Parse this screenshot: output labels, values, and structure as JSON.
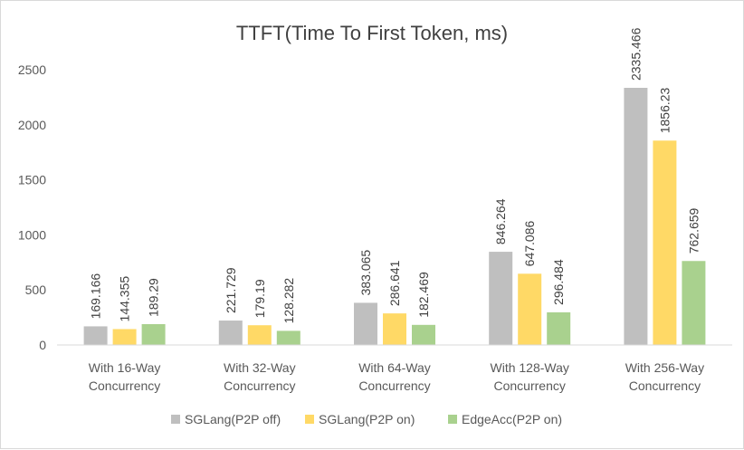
{
  "chart_data": {
    "type": "bar",
    "title": "TTFT(Time To First Token, ms)",
    "xlabel": "",
    "ylabel": "",
    "ylim": [
      0,
      2500
    ],
    "yticks": [
      0,
      500,
      1000,
      1500,
      2000,
      2500
    ],
    "categories": [
      [
        "With 16-Way",
        "Concurrency"
      ],
      [
        "With 32-Way",
        "Concurrency"
      ],
      [
        "With 64-Way",
        "Concurrency"
      ],
      [
        "With 128-Way",
        "Concurrency"
      ],
      [
        "With 256-Way",
        "Concurrency"
      ]
    ],
    "series": [
      {
        "name": "SGLang(P2P off)",
        "color": "#bfbfbf",
        "values": [
          169.166,
          221.729,
          383.065,
          846.264,
          2335.466
        ],
        "labels": [
          "169.166",
          "221.729",
          "383.065",
          "846.264",
          "2335.466"
        ]
      },
      {
        "name": "SGLang(P2P on)",
        "color": "#ffd966",
        "values": [
          144.355,
          179.19,
          286.641,
          647.086,
          1856.23
        ],
        "labels": [
          "144.355",
          "179.19",
          "286.641",
          "647.086",
          "1856.23"
        ]
      },
      {
        "name": "EdgeAcc(P2P on)",
        "color": "#a9d18e",
        "values": [
          189.29,
          128.282,
          182.469,
          296.484,
          762.659
        ],
        "labels": [
          "189.29",
          "128.282",
          "182.469",
          "296.484",
          "762.659"
        ]
      }
    ],
    "grid": false,
    "legend": "bottom"
  }
}
